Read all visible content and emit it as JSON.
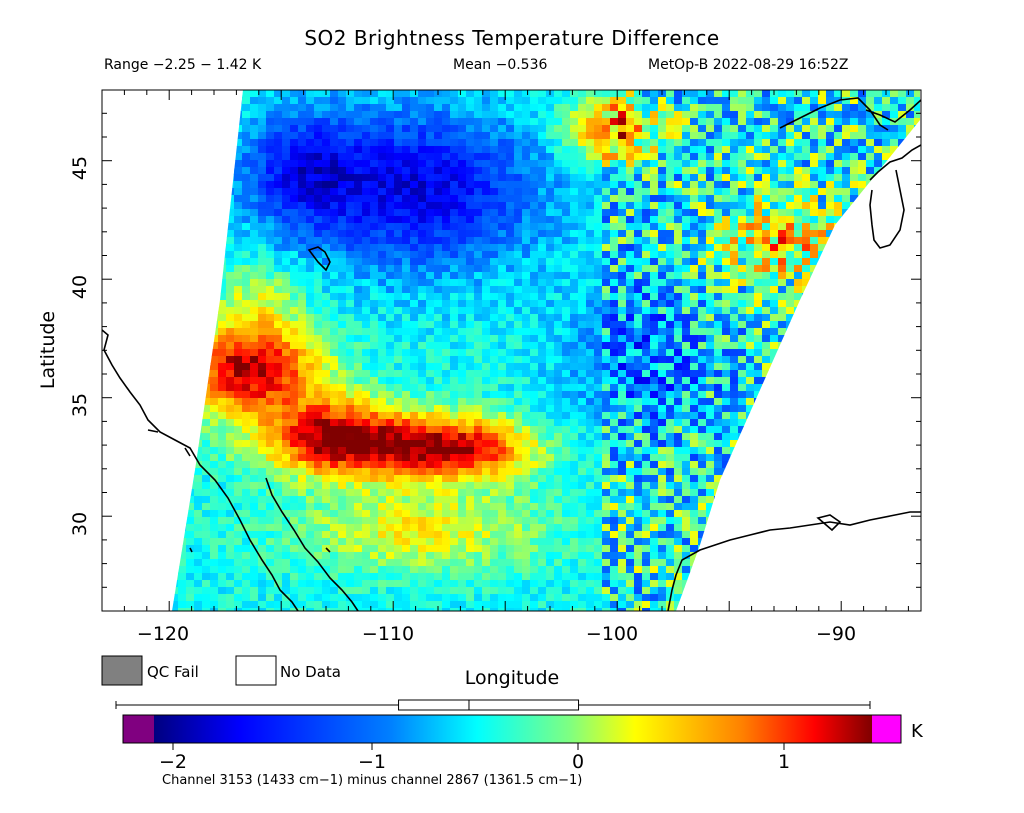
{
  "header": {
    "title": "SO2 Brightness Temperature Difference",
    "range": "Range −2.25 − 1.42 K",
    "mean": "Mean −0.536",
    "satellite_time": "MetOp-B 2022-08-29 16:52Z"
  },
  "axes": {
    "x_label": "Longitude",
    "y_label": "Latitude",
    "x_ticks": [
      "−120",
      "−110",
      "−100",
      "−90"
    ],
    "y_ticks": [
      "30",
      "35",
      "40",
      "45"
    ],
    "x_range": [
      -122.2,
      -85.8
    ],
    "y_range": [
      26.3,
      48.3
    ]
  },
  "legend": {
    "qc_fail": "QC Fail",
    "no_data": "No Data",
    "qc_fail_color": "#808080",
    "no_data_color": "#ffffff"
  },
  "colorbar": {
    "unit": "K",
    "ticks": [
      "−2",
      "−1",
      "0",
      "1"
    ],
    "tick_values": [
      -2,
      -1,
      0,
      1
    ],
    "range": [
      -2.25,
      1.42
    ],
    "under_color": "#800080",
    "over_color": "#ff00ff",
    "boxplot": {
      "min": -2.25,
      "q1": -1.0,
      "median": -0.64,
      "q3": -0.08,
      "max": 1.42
    }
  },
  "footnote": "Channel 3153 (1433 cm−1) minus channel 2867 (1361.5 cm−1)"
}
